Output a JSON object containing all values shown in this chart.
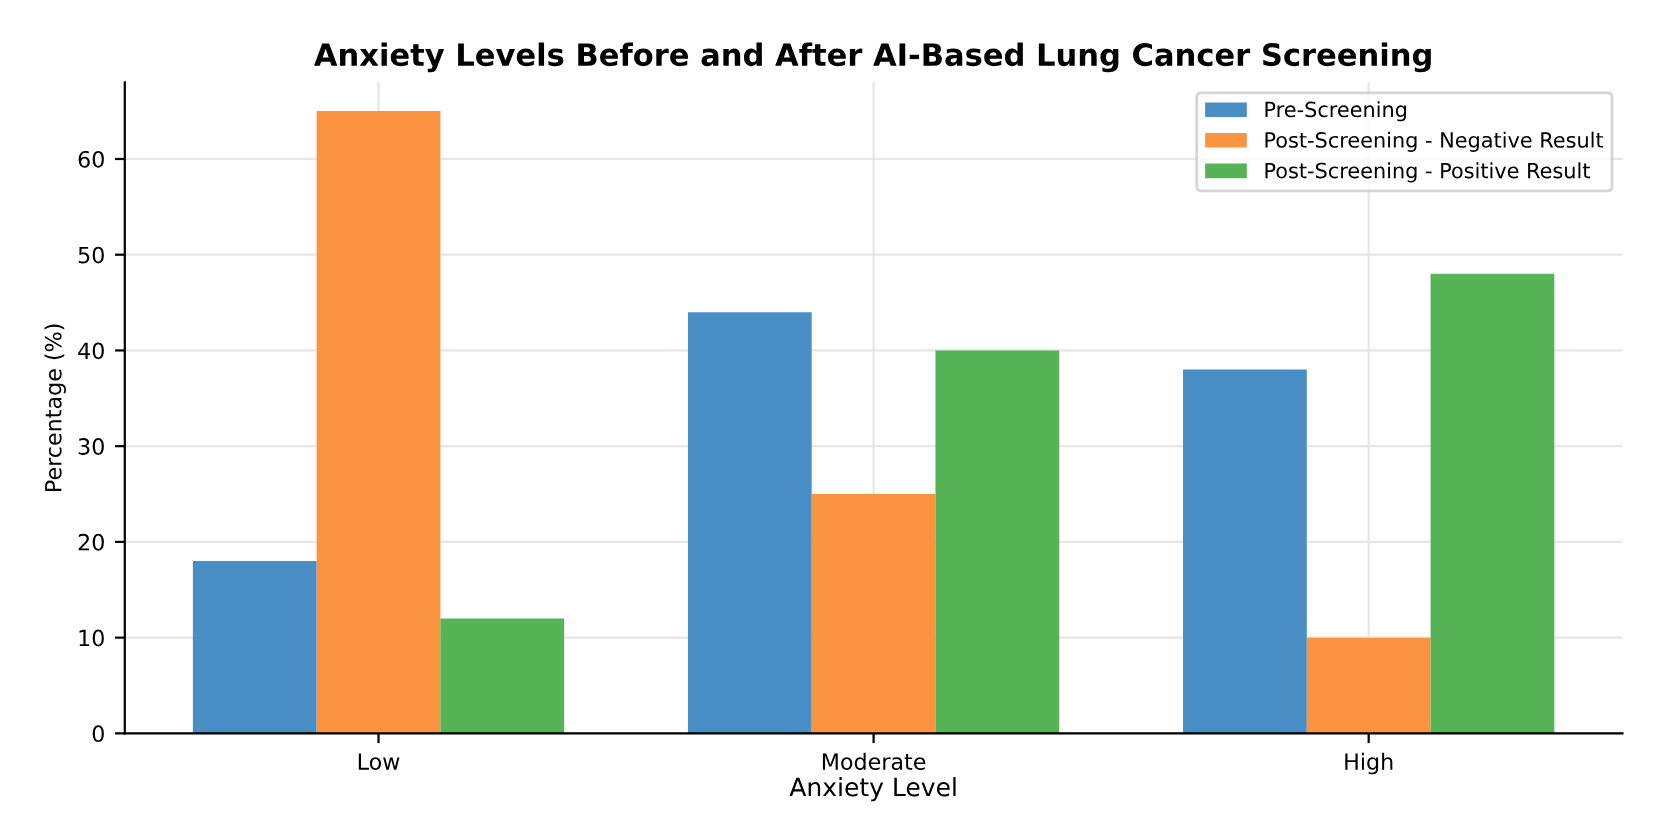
{
  "chart_data": {
    "type": "bar",
    "title": "Anxiety Levels Before and After AI-Based Lung Cancer Screening",
    "xlabel": "Anxiety Level",
    "ylabel": "Percentage (%)",
    "categories": [
      "Low",
      "Moderate",
      "High"
    ],
    "series": [
      {
        "name": "Pre-Screening",
        "color": "#4a8ec6",
        "values": [
          18,
          44,
          38
        ]
      },
      {
        "name": "Post-Screening - Negative Result",
        "color": "#fb9440",
        "values": [
          65,
          25,
          10
        ]
      },
      {
        "name": "Post-Screening - Positive Result",
        "color": "#56b356",
        "values": [
          12,
          40,
          48
        ]
      }
    ],
    "ylim": [
      0,
      68
    ],
    "yticks": [
      0,
      10,
      20,
      30,
      40,
      50,
      60
    ],
    "grid": true,
    "legend": "top right"
  }
}
